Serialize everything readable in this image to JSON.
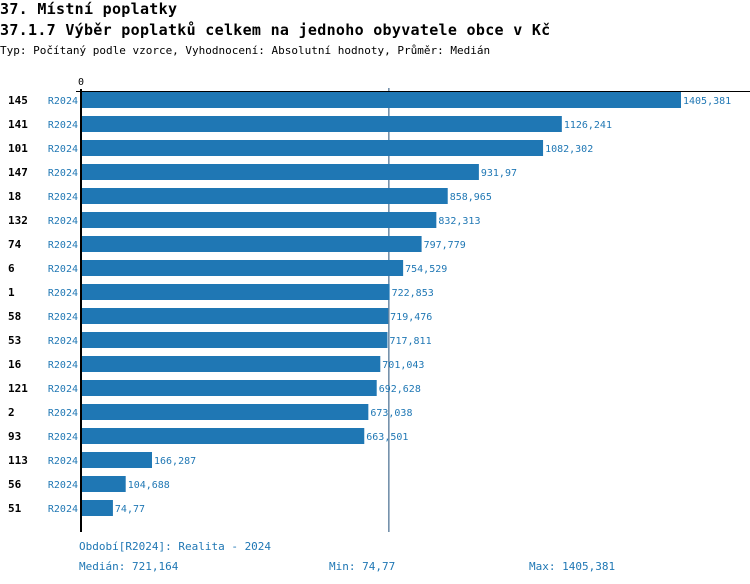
{
  "section_title": "37. Místní poplatky",
  "chart_title": "37.1.7 Výběr poplatků celkem na jednoho obyvatele obce v  Kč",
  "subtitle": "Typ: Počítaný podle vzorce, Vyhodnocení: Absolutní hodnoty, Průměr: Medián",
  "colors": {
    "bar": "#1f77b4",
    "label": "#1f77b4",
    "median_line": "#1f4e79"
  },
  "chart_data": {
    "type": "bar",
    "orientation": "horizontal",
    "x_tick_labels": [
      "0"
    ],
    "xlim": [
      0,
      1405.381
    ],
    "categories": [
      "145",
      "141",
      "101",
      "147",
      "18",
      "132",
      "74",
      "6",
      "1",
      "58",
      "53",
      "16",
      "121",
      "2",
      "93",
      "113",
      "56",
      "51"
    ],
    "series_label": "R2024",
    "values": [
      1405.381,
      1126.241,
      1082.302,
      931.97,
      858.965,
      832.313,
      797.779,
      754.529,
      722.853,
      719.476,
      717.811,
      701.043,
      692.628,
      673.038,
      663.501,
      166.287,
      104.688,
      74.77
    ],
    "value_labels": [
      "1405,381",
      "1126,241",
      "1082,302",
      "931,97",
      "858,965",
      "832,313",
      "797,779",
      "754,529",
      "722,853",
      "719,476",
      "717,811",
      "701,043",
      "692,628",
      "673,038",
      "663,501",
      "166,287",
      "104,688",
      "74,77"
    ],
    "median": 721.164
  },
  "footer": {
    "period": "Období[R2024]: Realita - 2024",
    "median": "Medián: 721,164",
    "min": "Min: 74,77",
    "max": "Max: 1405,381"
  }
}
